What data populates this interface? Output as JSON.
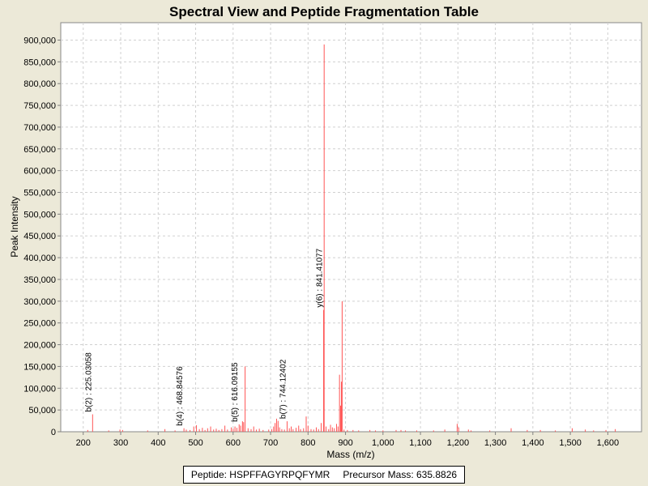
{
  "chart_data": {
    "type": "bar",
    "title": "Spectral View and Peptide Fragmentation Table",
    "xlabel": "Mass (m/z)",
    "ylabel": "Peak Intensity",
    "xlim": [
      140,
      1690
    ],
    "ylim": [
      0,
      940000
    ],
    "x_ticks": [
      200,
      300,
      400,
      500,
      600,
      700,
      800,
      900,
      1000,
      1100,
      1200,
      1300,
      1400,
      1500,
      1600
    ],
    "x_tick_labels": [
      "200",
      "300",
      "400",
      "500",
      "600",
      "700",
      "800",
      "900",
      "1,000",
      "1,100",
      "1,200",
      "1,300",
      "1,400",
      "1,500",
      "1,600"
    ],
    "y_ticks": [
      0,
      50000,
      100000,
      150000,
      200000,
      250000,
      300000,
      350000,
      400000,
      450000,
      500000,
      550000,
      600000,
      650000,
      700000,
      750000,
      800000,
      850000,
      900000
    ],
    "y_tick_labels": [
      "0",
      "50,000",
      "100,000",
      "150,000",
      "200,000",
      "250,000",
      "300,000",
      "350,000",
      "400,000",
      "450,000",
      "500,000",
      "550,000",
      "600,000",
      "650,000",
      "700,000",
      "750,000",
      "800,000",
      "850,000",
      "900,000"
    ],
    "grid": true,
    "series": [
      {
        "name": "peaks",
        "color": "#ff5555",
        "points": [
          [
            212,
            4000
          ],
          [
            225.03,
            40000
          ],
          [
            268,
            3000
          ],
          [
            298,
            5000
          ],
          [
            305,
            4000
          ],
          [
            372,
            3000
          ],
          [
            418,
            6000
          ],
          [
            445,
            3000
          ],
          [
            468.85,
            8000
          ],
          [
            475,
            5000
          ],
          [
            485,
            4000
          ],
          [
            495,
            12000
          ],
          [
            502,
            15000
          ],
          [
            510,
            6000
          ],
          [
            518,
            9000
          ],
          [
            525,
            4000
          ],
          [
            532,
            8000
          ],
          [
            540,
            12000
          ],
          [
            548,
            5000
          ],
          [
            555,
            7000
          ],
          [
            562,
            4000
          ],
          [
            570,
            6000
          ],
          [
            578,
            14000
          ],
          [
            585,
            5000
          ],
          [
            595,
            10000
          ],
          [
            600,
            7000
          ],
          [
            605,
            12000
          ],
          [
            610,
            9000
          ],
          [
            616.09,
            17000
          ],
          [
            620,
            14000
          ],
          [
            625,
            24000
          ],
          [
            628,
            22000
          ],
          [
            632,
            150000
          ],
          [
            640,
            8000
          ],
          [
            648,
            6000
          ],
          [
            655,
            12000
          ],
          [
            662,
            5000
          ],
          [
            670,
            7000
          ],
          [
            680,
            4000
          ],
          [
            695,
            5000
          ],
          [
            703,
            6000
          ],
          [
            708,
            12000
          ],
          [
            712,
            20000
          ],
          [
            716,
            30000
          ],
          [
            720,
            25000
          ],
          [
            724,
            10000
          ],
          [
            730,
            6000
          ],
          [
            737,
            5000
          ],
          [
            744.12,
            24000
          ],
          [
            750,
            8000
          ],
          [
            755,
            12000
          ],
          [
            760,
            6000
          ],
          [
            768,
            9000
          ],
          [
            775,
            14000
          ],
          [
            780,
            6000
          ],
          [
            788,
            8000
          ],
          [
            795,
            35000
          ],
          [
            800,
            14000
          ],
          [
            808,
            6000
          ],
          [
            815,
            5000
          ],
          [
            822,
            10000
          ],
          [
            828,
            6000
          ],
          [
            835,
            20000
          ],
          [
            841.41,
            280000
          ],
          [
            843,
            890000
          ],
          [
            848,
            12000
          ],
          [
            855,
            6000
          ],
          [
            860,
            16000
          ],
          [
            865,
            10000
          ],
          [
            870,
            8000
          ],
          [
            876,
            18000
          ],
          [
            880,
            12000
          ],
          [
            884,
            131000
          ],
          [
            887,
            60000
          ],
          [
            889,
            115000
          ],
          [
            891,
            300000
          ],
          [
            896,
            5000
          ],
          [
            905,
            4000
          ],
          [
            920,
            4000
          ],
          [
            935,
            3000
          ],
          [
            965,
            4000
          ],
          [
            980,
            3000
          ],
          [
            1000,
            3000
          ],
          [
            1035,
            4000
          ],
          [
            1048,
            4000
          ],
          [
            1060,
            3000
          ],
          [
            1090,
            3000
          ],
          [
            1135,
            3000
          ],
          [
            1165,
            5000
          ],
          [
            1198,
            18000
          ],
          [
            1202,
            10000
          ],
          [
            1228,
            5000
          ],
          [
            1235,
            3000
          ],
          [
            1285,
            3000
          ],
          [
            1342,
            8000
          ],
          [
            1385,
            4000
          ],
          [
            1420,
            4000
          ],
          [
            1460,
            3000
          ],
          [
            1505,
            8000
          ],
          [
            1540,
            5000
          ],
          [
            1562,
            3000
          ],
          [
            1595,
            4000
          ],
          [
            1620,
            6000
          ]
        ]
      }
    ],
    "annotations": [
      {
        "text": "b(2) : 225.03058",
        "x": 225.03,
        "y": 40000
      },
      {
        "text": "b(4) : 468.84576",
        "x": 468.85,
        "y": 8000
      },
      {
        "text": "b(5) : 616.09155",
        "x": 616.09,
        "y": 17000
      },
      {
        "text": "b(7) : 744.12402",
        "x": 744.12,
        "y": 24000
      },
      {
        "text": "y(6) : 841.41077",
        "x": 841.41,
        "y": 280000
      }
    ],
    "legend": {
      "peptide_label": "Peptide: HSPFFAGYRPQFYMR",
      "precursor_label": "Precursor Mass: 635.8826"
    }
  }
}
